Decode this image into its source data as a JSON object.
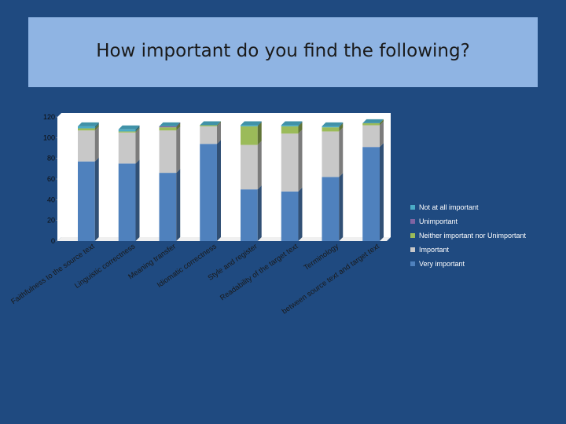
{
  "slide": {
    "title": "How important do you find the following?"
  },
  "colors": {
    "very_important": "#4f81bd",
    "important": "#c8c8c8",
    "neither": "#9bbb59",
    "unimportant": "#8064a2",
    "not_at_all": "#4bacc6"
  },
  "chart_data": {
    "type": "bar",
    "stacked": true,
    "three_d": true,
    "categories": [
      "Faithfulness to the source text",
      "Linguistic correctness",
      "Meaning transfer",
      "Idiomatic correctness",
      "Style and register",
      "Readability of the target text",
      "Terminology",
      "between source text and target text"
    ],
    "series": [
      {
        "name": "Very important",
        "values": [
          77,
          75,
          66,
          94,
          50,
          48,
          62,
          91
        ]
      },
      {
        "name": "Important",
        "values": [
          30,
          30,
          41,
          17,
          43,
          56,
          44,
          21
        ]
      },
      {
        "name": "Neither important nor Unimportant",
        "values": [
          2,
          1,
          3,
          1,
          18,
          7,
          4,
          2
        ]
      },
      {
        "name": "Unimportant",
        "values": [
          0,
          0,
          1,
          0,
          0,
          0,
          0,
          0
        ]
      },
      {
        "name": "Not at all important",
        "values": [
          2,
          2,
          0,
          0,
          1,
          1,
          1,
          0
        ]
      }
    ],
    "ylim": [
      0,
      120
    ],
    "yticks": [
      "0",
      "20",
      "40",
      "60",
      "80",
      "100",
      "120"
    ],
    "grid": false,
    "legend_position": "right",
    "legend_order": [
      "Not at all important",
      "Unimportant",
      "Neither important nor Unimportant",
      "Important",
      "Very important"
    ]
  }
}
